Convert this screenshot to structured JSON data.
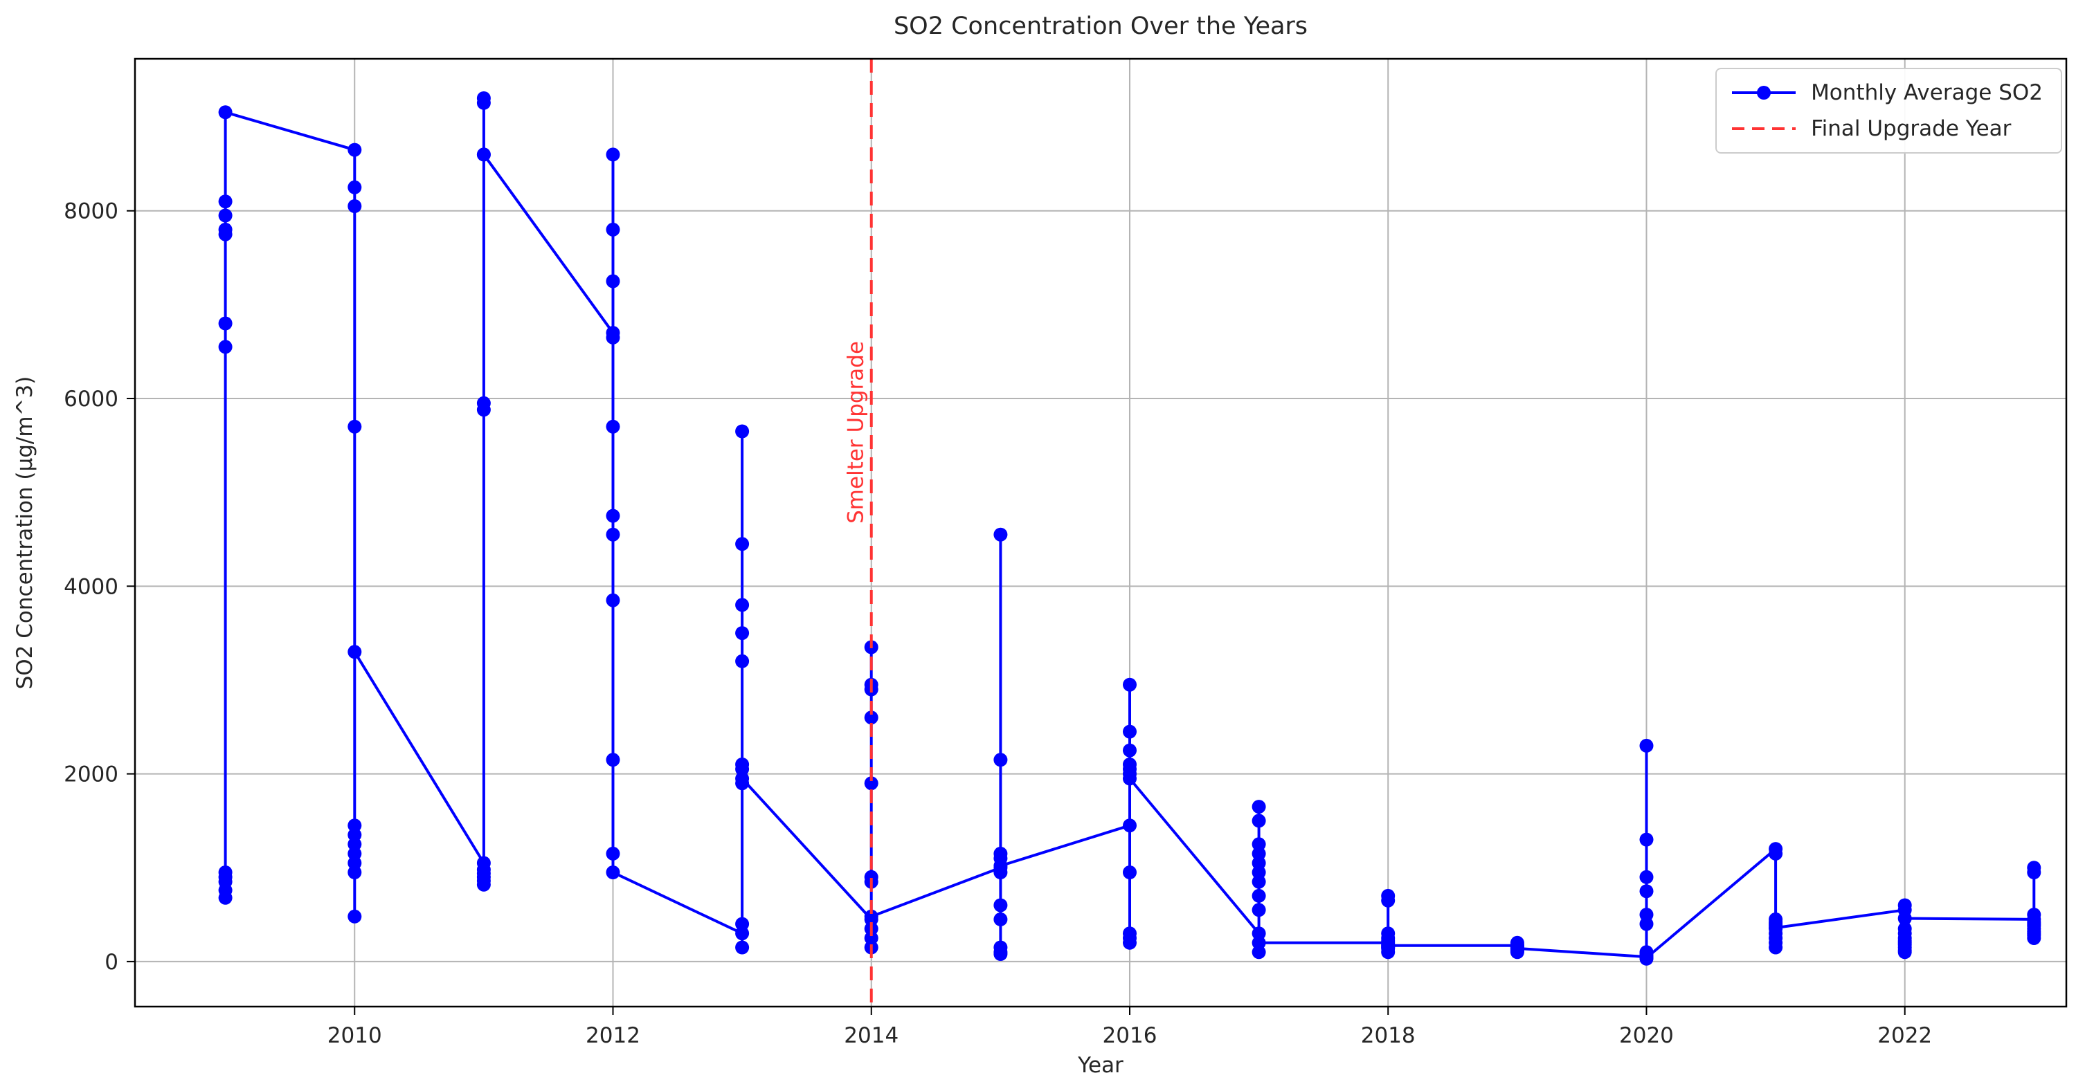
{
  "chart_data": {
    "type": "line",
    "title": "SO2 Concentration Over the Years",
    "xlabel": "Year",
    "ylabel": "SO2 Concentration (µg/m^3)",
    "x_ticks": [
      2010,
      2012,
      2014,
      2016,
      2018,
      2020,
      2022
    ],
    "y_ticks": [
      0,
      2000,
      4000,
      6000,
      8000
    ],
    "x_range": [
      2008.3,
      2023.25
    ],
    "y_range": [
      -480,
      9620
    ],
    "grid": true,
    "colors": {
      "series": "#0000ff",
      "upgrade": "#ff3333",
      "grid": "#b4b4b4",
      "axis": "#000000",
      "text": "#262626"
    },
    "legend": {
      "position": "upper-right",
      "entries": [
        {
          "label": "Monthly Average SO2",
          "style": "line-marker",
          "color": "#0000ff"
        },
        {
          "label": "Final Upgrade Year",
          "style": "dashed",
          "color": "#ff3333"
        }
      ]
    },
    "upgrade_line": {
      "x": 2014,
      "style": "dashed"
    },
    "annotation": {
      "text": "Smelter Upgrade",
      "x": 2014,
      "y": 5640,
      "rotation": -90
    },
    "series": [
      {
        "name": "Monthly Average SO2",
        "years": [
          {
            "year": 2009,
            "monthly": [
              680,
              760,
              850,
              900,
              950,
              6550,
              6800,
              7750,
              7800,
              7950,
              8100,
              9050
            ]
          },
          {
            "year": 2010,
            "monthly": [
              8650,
              8250,
              8050,
              5700,
              1450,
              1350,
              1250,
              1150,
              1050,
              950,
              480,
              3300
            ]
          },
          {
            "year": 2011,
            "monthly": [
              1050,
              860,
              900,
              940,
              980,
              820,
              5880,
              5950,
              9200,
              9150,
              8600,
              8600
            ]
          },
          {
            "year": 2012,
            "monthly": [
              6700,
              8600,
              7800,
              7250,
              6650,
              5700,
              4750,
              4550,
              3850,
              2150,
              1150,
              950
            ]
          },
          {
            "year": 2013,
            "monthly": [
              300,
              150,
              400,
              5650,
              4450,
              3800,
              3500,
              3200,
              2100,
              2050,
              1900,
              1950
            ]
          },
          {
            "year": 2014,
            "monthly": [
              450,
              3350,
              2950,
              2900,
              2600,
              1900,
              900,
              850,
              350,
              250,
              150,
              480
            ]
          },
          {
            "year": 2015,
            "monthly": [
              1000,
              4550,
              2150,
              1150,
              1100,
              950,
              600,
              450,
              150,
              100,
              80,
              1020
            ]
          },
          {
            "year": 2016,
            "monthly": [
              1450,
              2950,
              2450,
              2250,
              2100,
              2050,
              2000,
              950,
              300,
              250,
              200,
              1950
            ]
          },
          {
            "year": 2017,
            "monthly": [
              300,
              1650,
              1500,
              1250,
              1150,
              1050,
              950,
              850,
              700,
              550,
              100,
              200
            ]
          },
          {
            "year": 2018,
            "monthly": [
              200,
              700,
              650,
              300,
              250,
              150,
              100,
              180,
              220,
              160,
              140,
              170
            ]
          },
          {
            "year": 2019,
            "monthly": [
              170,
              200,
              150,
              120,
              100,
              140,
              160,
              180,
              130,
              110,
              150,
              140
            ]
          },
          {
            "year": 2020,
            "monthly": [
              50,
              2300,
              1300,
              900,
              750,
              500,
              400,
              100,
              80,
              30,
              60,
              40
            ]
          },
          {
            "year": 2021,
            "monthly": [
              1200,
              1150,
              450,
              400,
              300,
              250,
              200,
              150,
              350,
              420,
              380,
              360
            ]
          },
          {
            "year": 2022,
            "monthly": [
              550,
              600,
              350,
              300,
              250,
              200,
              150,
              100,
              120,
              180,
              220,
              460
            ]
          },
          {
            "year": 2023,
            "monthly": [
              450,
              1000,
              950,
              500,
              400,
              350,
              300,
              250,
              280,
              320,
              380,
              420
            ]
          }
        ]
      }
    ]
  }
}
